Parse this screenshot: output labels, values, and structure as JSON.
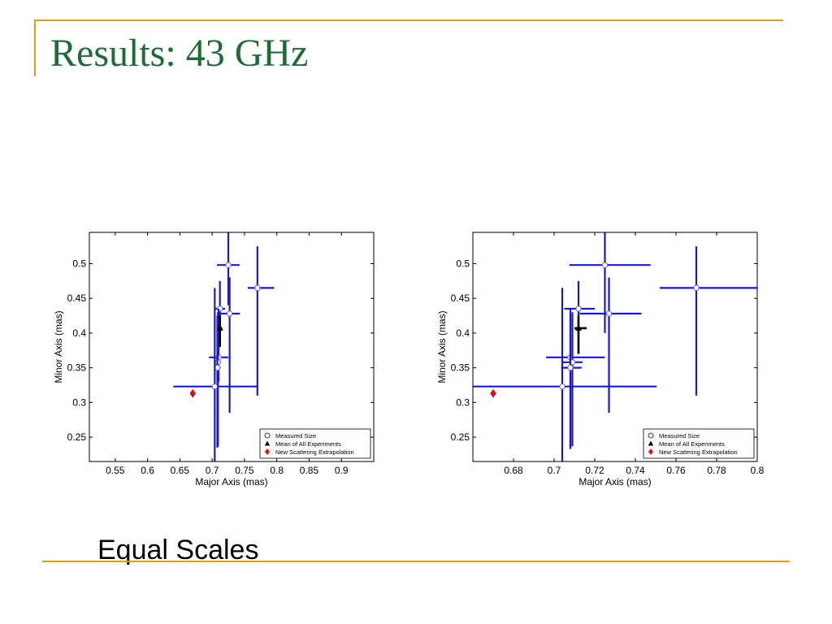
{
  "slide": {
    "title": "Results:  43 GHz",
    "caption": "Equal Scales"
  },
  "chart_data": [
    {
      "type": "scatter",
      "title": "",
      "xlabel": "Major Axis (mas)",
      "ylabel": "Minor Axis (mas)",
      "xlim": [
        0.51,
        0.95
      ],
      "ylim": [
        0.215,
        0.545
      ],
      "xticks": [
        "0.55",
        "0.6",
        "0.65",
        "0.7",
        "0.75",
        "0.8",
        "0.85",
        "0.9"
      ],
      "xtick_values": [
        0.55,
        0.6,
        0.65,
        0.7,
        0.75,
        0.8,
        0.85,
        0.9
      ],
      "yticks": [
        "0.25",
        "0.3",
        "0.35",
        "0.4",
        "0.45",
        "0.5"
      ],
      "ytick_values": [
        0.25,
        0.3,
        0.35,
        0.4,
        0.45,
        0.5
      ],
      "grid": false,
      "legend_position": "bottom-right",
      "series": [
        {
          "name": "Measured Size",
          "color": "#1a1acc",
          "points": [
            {
              "x": 0.725,
              "y": 0.498,
              "xerr": [
                0.7075,
                0.7425
              ],
              "yerr": [
                0.44,
                0.556
              ]
            },
            {
              "x": 0.77,
              "y": 0.465,
              "xerr": [
                0.755,
                0.796
              ],
              "yerr": [
                0.31,
                0.525
              ]
            },
            {
              "x": 0.712,
              "y": 0.435,
              "xerr": [
                0.705,
                0.72
              ],
              "yerr": [
                0.395,
                0.475
              ]
            },
            {
              "x": 0.727,
              "y": 0.428,
              "xerr": [
                0.7125,
                0.743
              ],
              "yerr": [
                0.285,
                0.48
              ]
            },
            {
              "x": 0.71,
              "y": 0.365,
              "xerr": [
                0.695,
                0.725
              ],
              "yerr": [
                0.33,
                0.435
              ]
            },
            {
              "x": 0.709,
              "y": 0.358,
              "xerr": [
                0.705,
                0.7135
              ],
              "yerr": [
                0.237,
                0.43
              ]
            },
            {
              "x": 0.708,
              "y": 0.35,
              "xerr": [
                0.7035,
                0.713
              ],
              "yerr": [
                0.235,
                0.425
              ]
            },
            {
              "x": 0.704,
              "y": 0.323,
              "xerr": [
                0.64,
                0.77
              ],
              "yerr": [
                0.21,
                0.465
              ]
            }
          ]
        },
        {
          "name": "Mean of All Experiments",
          "color": "#000000",
          "points": [
            {
              "x": 0.712,
              "y": 0.407,
              "xerr": [
                0.709,
                0.7155
              ],
              "yerr": [
                0.38,
                0.425
              ]
            }
          ]
        },
        {
          "name": "New Scattering Extrapolation",
          "color": "#dd1111",
          "points": [
            {
              "x": 0.67,
              "y": 0.313
            }
          ]
        }
      ]
    },
    {
      "type": "scatter",
      "title": "",
      "xlabel": "Major Axis (mas)",
      "ylabel": "Minor Axis (mas)",
      "xlim": [
        0.66,
        0.8
      ],
      "ylim": [
        0.215,
        0.545
      ],
      "xticks": [
        "0.68",
        "0.7",
        "0.72",
        "0.74",
        "0.76",
        "0.78",
        "0.8"
      ],
      "xtick_values": [
        0.68,
        0.7,
        0.72,
        0.74,
        0.76,
        0.78,
        0.8
      ],
      "yticks": [
        "0.25",
        "0.3",
        "0.35",
        "0.4",
        "0.45",
        "0.5"
      ],
      "ytick_values": [
        0.25,
        0.3,
        0.35,
        0.4,
        0.45,
        0.5
      ],
      "grid": false,
      "legend_position": "bottom-right",
      "series": [
        {
          "name": "Measured Size",
          "color": "#1a1acc",
          "points": [
            {
              "x": 0.725,
              "y": 0.498,
              "xerr": [
                0.7075,
                0.7475
              ],
              "yerr": [
                0.4,
                0.556
              ]
            },
            {
              "x": 0.77,
              "y": 0.465,
              "xerr": [
                0.752,
                0.81
              ],
              "yerr": [
                0.31,
                0.525
              ]
            },
            {
              "x": 0.712,
              "y": 0.435,
              "xerr": [
                0.705,
                0.72
              ],
              "yerr": [
                0.395,
                0.475
              ]
            },
            {
              "x": 0.727,
              "y": 0.428,
              "xerr": [
                0.7125,
                0.743
              ],
              "yerr": [
                0.285,
                0.48
              ]
            },
            {
              "x": 0.708,
              "y": 0.365,
              "xerr": [
                0.696,
                0.725
              ],
              "yerr": [
                0.235,
                0.435
              ]
            },
            {
              "x": 0.709,
              "y": 0.358,
              "xerr": [
                0.704,
                0.714
              ],
              "yerr": [
                0.237,
                0.43
              ]
            },
            {
              "x": 0.708,
              "y": 0.35,
              "xerr": [
                0.7035,
                0.7135
              ],
              "yerr": [
                0.233,
                0.425
              ]
            },
            {
              "x": 0.704,
              "y": 0.323,
              "xerr": [
                0.66,
                0.7505
              ],
              "yerr": [
                0.21,
                0.465
              ]
            }
          ]
        },
        {
          "name": "Mean of All Experiments",
          "color": "#000000",
          "points": [
            {
              "x": 0.712,
              "y": 0.407,
              "xerr": [
                0.71,
                0.716
              ],
              "yerr": [
                0.37,
                0.425
              ]
            }
          ]
        },
        {
          "name": "New Scattering Extrapolation",
          "color": "#dd1111",
          "points": [
            {
              "x": 0.67,
              "y": 0.313
            }
          ]
        }
      ]
    }
  ]
}
